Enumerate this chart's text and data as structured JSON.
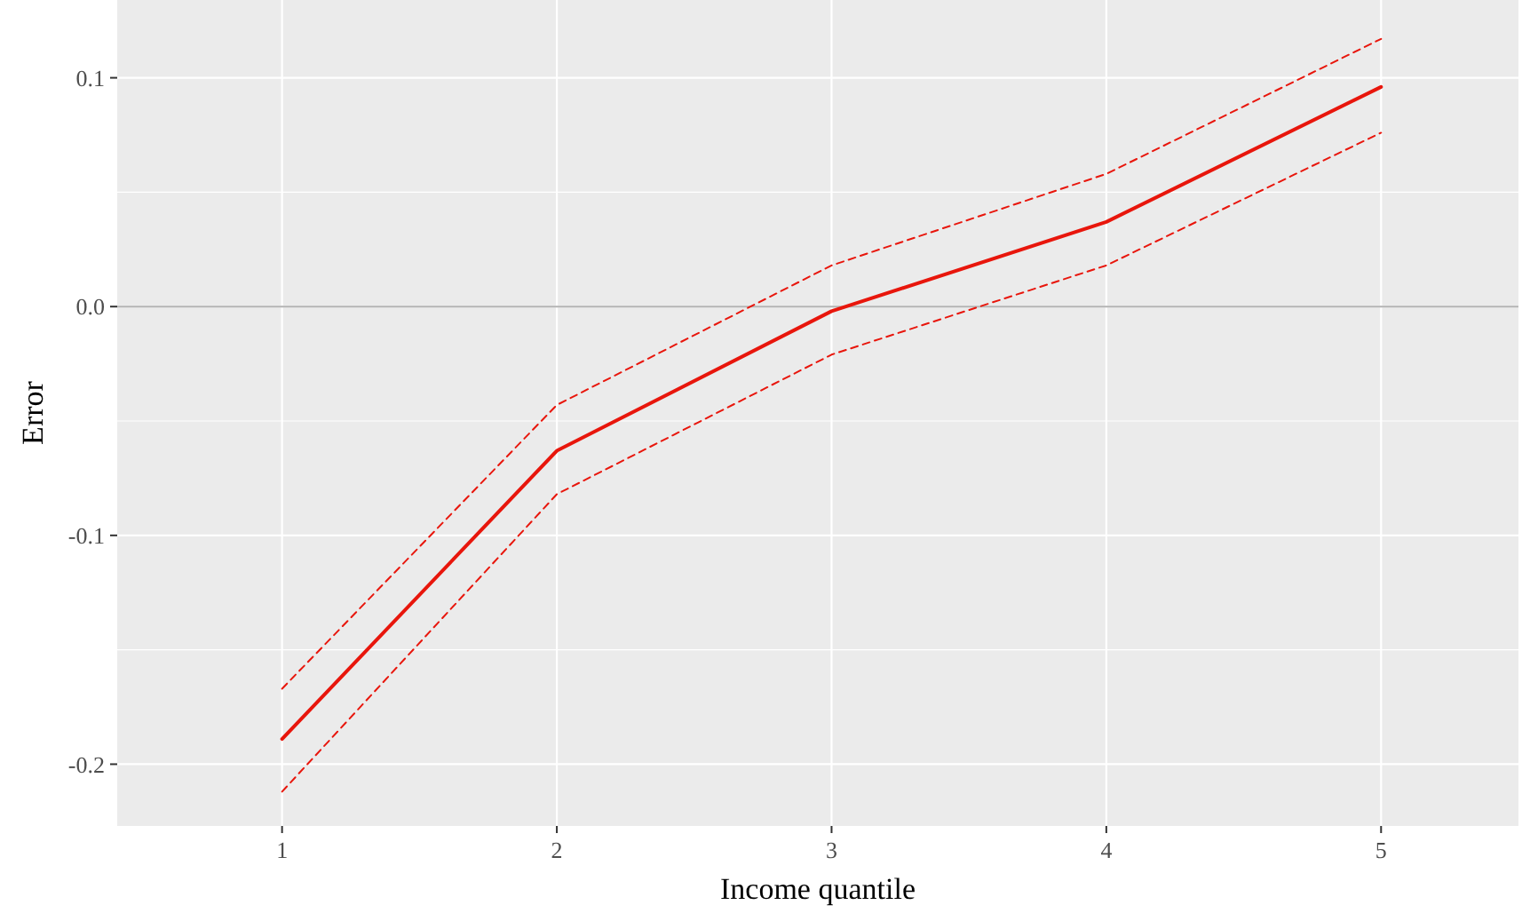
{
  "chart_data": {
    "type": "line",
    "xlabel": "Income quantile",
    "ylabel": "Error",
    "x": [
      1,
      2,
      3,
      4,
      5
    ],
    "series": [
      {
        "color": "#e8160c",
        "values": [
          -0.189,
          -0.063,
          -0.002,
          0.037,
          0.096
        ],
        "line_style": "solid"
      },
      {
        "color": "#e8160c",
        "values": [
          -0.167,
          -0.043,
          0.018,
          0.058,
          0.117
        ],
        "line_style": "dashed"
      },
      {
        "color": "#e8160c",
        "values": [
          -0.212,
          -0.082,
          -0.021,
          0.018,
          0.076
        ],
        "line_style": "dashed"
      }
    ],
    "xlim": [
      0.4,
      5.5
    ],
    "xticks": [
      1,
      2,
      3,
      4,
      5
    ],
    "ylim": [
      -0.227,
      0.134
    ],
    "yticks": [
      {
        "value": -0.2,
        "label": "-0.2"
      },
      {
        "value": -0.15,
        "label": null
      },
      {
        "value": -0.1,
        "label": "-0.1"
      },
      {
        "value": -0.05,
        "label": null
      },
      {
        "value": 0,
        "label": "0.0"
      },
      {
        "value": 0.05,
        "label": null
      },
      {
        "value": 0.1,
        "label": "0.1"
      }
    ],
    "ref_lines": [
      {
        "axis": "y",
        "value": 0,
        "color": "#b3b3b3"
      }
    ],
    "grid": true,
    "marker": "none"
  }
}
